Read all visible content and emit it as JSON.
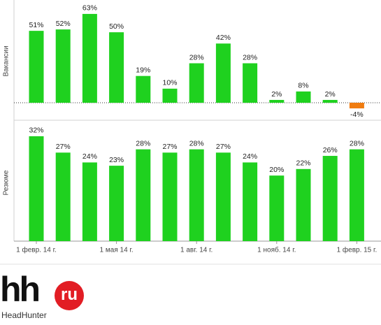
{
  "chart_data": [
    {
      "type": "bar",
      "y_label": "Вакансии",
      "color": "#1fd11f",
      "negative_color": "#f07c10",
      "values": [
        51,
        52,
        63,
        50,
        19,
        10,
        28,
        42,
        28,
        2,
        8,
        2,
        -4
      ],
      "value_labels": [
        "51%",
        "52%",
        "63%",
        "50%",
        "19%",
        "10%",
        "28%",
        "42%",
        "28%",
        "2%",
        "8%",
        "2%",
        "-4%"
      ],
      "ylim": [
        -11.4,
        70.4
      ]
    },
    {
      "type": "bar",
      "y_label": "Резюме",
      "color": "#1fd11f",
      "categories": [
        "1 февр. 14 г.",
        null,
        null,
        "1 мая 14 г.",
        null,
        null,
        "1 авг. 14 г.",
        null,
        null,
        "1 нояб. 14 г.",
        null,
        null,
        "1 февр. 15 г."
      ],
      "values": [
        32,
        27,
        24,
        23,
        28,
        27,
        28,
        27,
        24,
        20,
        22,
        26,
        28
      ],
      "value_labels": [
        "32%",
        "27%",
        "24%",
        "23%",
        "28%",
        "27%",
        "28%",
        "27%",
        "24%",
        "20%",
        "22%",
        "26%",
        "28%"
      ],
      "ylim": [
        0,
        35.6
      ]
    }
  ],
  "logo": {
    "mark": "hh",
    "badge": "ru",
    "name": "HeadHunter"
  }
}
